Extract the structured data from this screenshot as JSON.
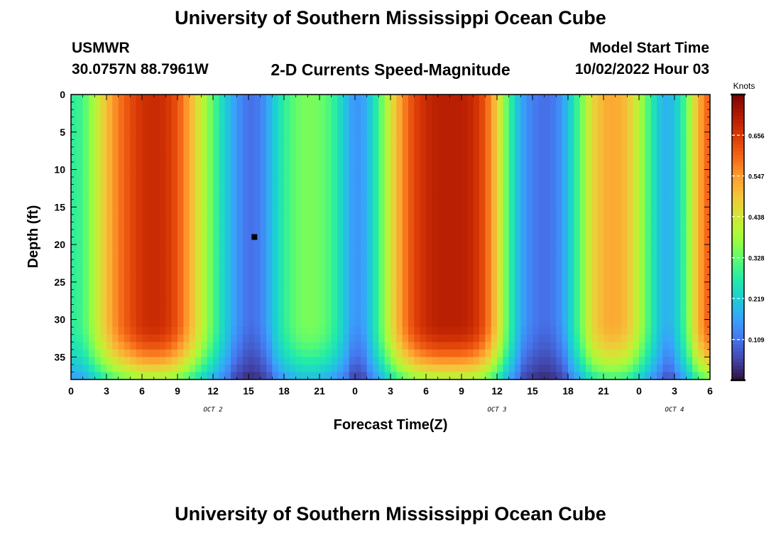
{
  "header": {
    "title": "University of Southern Mississippi Ocean Cube",
    "station": "USMWR",
    "coords": "30.0757N  88.7961W",
    "subtitle": "2-D Currents Speed-Magnitude",
    "model_label": "Model Start Time",
    "model_time": "10/02/2022 Hour 03"
  },
  "footer": {
    "title": "University of Southern Mississippi Ocean Cube"
  },
  "chart_data": {
    "type": "heatmap",
    "title": "2-D Currents Speed-Magnitude",
    "xlabel": "Forecast Time(Z)",
    "ylabel": "Depth (ft)",
    "x_tick_labels": [
      "0",
      "3",
      "6",
      "9",
      "12",
      "15",
      "18",
      "21",
      "0",
      "3",
      "6",
      "9",
      "12",
      "15",
      "18",
      "21",
      "0",
      "3",
      "6"
    ],
    "date_labels": [
      "OCT 2",
      "OCT 3",
      "OCT 4"
    ],
    "y_ticks": [
      0,
      5,
      10,
      15,
      20,
      25,
      30,
      35
    ],
    "ylim": [
      0,
      38
    ],
    "y_inverted": true,
    "x_range_hours": [
      0,
      54
    ],
    "colorbar": {
      "label": "Knots",
      "ticks": [
        0.109,
        0.219,
        0.328,
        0.438,
        0.547,
        0.656
      ],
      "range": [
        0.0,
        0.765
      ]
    },
    "colormap": [
      "#30123b",
      "#4145ab",
      "#4675ed",
      "#39a2fc",
      "#1bcfd4",
      "#24eca6",
      "#61fc6c",
      "#a4fc3b",
      "#d1e834",
      "#f3c63a",
      "#fe9b2d",
      "#f36315",
      "#d93806",
      "#b11901",
      "#7a0403"
    ],
    "time_profile_knots": [
      [
        0,
        0.28
      ],
      [
        1,
        0.3
      ],
      [
        2,
        0.4
      ],
      [
        3,
        0.5
      ],
      [
        4,
        0.58
      ],
      [
        5,
        0.63
      ],
      [
        6,
        0.67
      ],
      [
        7,
        0.68
      ],
      [
        8,
        0.67
      ],
      [
        9,
        0.62
      ],
      [
        10,
        0.53
      ],
      [
        11,
        0.42
      ],
      [
        12,
        0.32
      ],
      [
        13,
        0.22
      ],
      [
        14,
        0.15
      ],
      [
        15,
        0.1
      ],
      [
        16,
        0.12
      ],
      [
        17,
        0.2
      ],
      [
        18,
        0.28
      ],
      [
        19,
        0.33
      ],
      [
        20,
        0.35
      ],
      [
        21,
        0.34
      ],
      [
        22,
        0.3
      ],
      [
        23,
        0.22
      ],
      [
        24,
        0.14
      ],
      [
        25,
        0.18
      ],
      [
        26,
        0.3
      ],
      [
        27,
        0.44
      ],
      [
        28,
        0.56
      ],
      [
        29,
        0.64
      ],
      [
        30,
        0.68
      ],
      [
        31,
        0.7
      ],
      [
        32,
        0.7
      ],
      [
        33,
        0.7
      ],
      [
        34,
        0.68
      ],
      [
        35,
        0.62
      ],
      [
        36,
        0.48
      ],
      [
        37,
        0.3
      ],
      [
        38,
        0.17
      ],
      [
        39,
        0.12
      ],
      [
        40,
        0.1
      ],
      [
        41,
        0.12
      ],
      [
        42,
        0.2
      ],
      [
        43,
        0.32
      ],
      [
        44,
        0.46
      ],
      [
        45,
        0.52
      ],
      [
        46,
        0.53
      ],
      [
        47,
        0.5
      ],
      [
        48,
        0.4
      ],
      [
        49,
        0.28
      ],
      [
        50,
        0.18
      ],
      [
        51,
        0.2
      ],
      [
        52,
        0.32
      ],
      [
        53,
        0.52
      ],
      [
        54,
        0.62
      ]
    ],
    "marker": {
      "x_hours": 15.5,
      "depth_ft": 19
    }
  }
}
